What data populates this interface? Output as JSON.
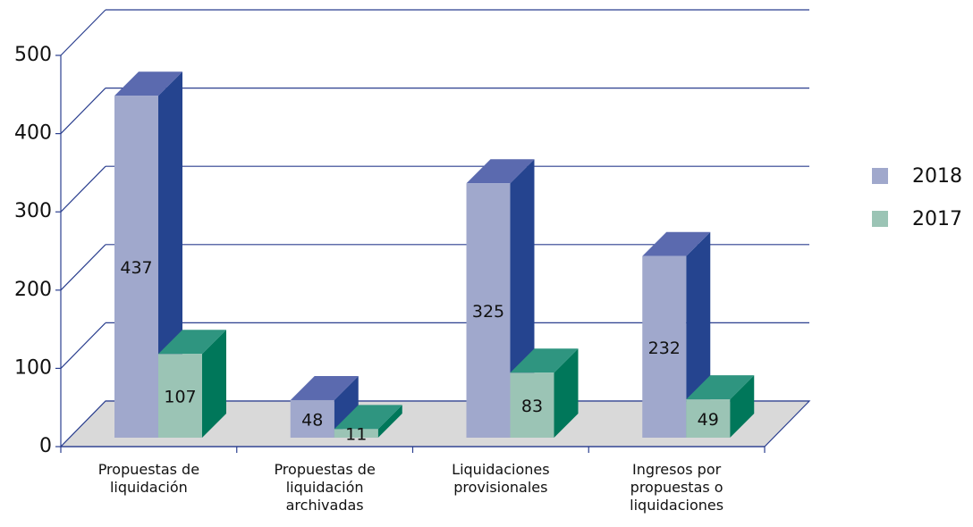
{
  "chart_data": {
    "type": "bar3d",
    "categories": [
      "Propuestas de liquidación",
      "Propuestas de liquidación archivadas",
      "Liquidaciones provisionales",
      "Ingresos por propuestas o liquidaciones"
    ],
    "series": [
      {
        "name": "2018",
        "color": "#a0a8cc",
        "side_color": "#25448f",
        "top_color": "#5b6aaf",
        "values": [
          437,
          48,
          325,
          232
        ]
      },
      {
        "name": "2017",
        "color": "#9bc4b5",
        "side_color": "#00775a",
        "top_color": "#2f9580",
        "values": [
          107,
          11,
          83,
          49
        ]
      }
    ],
    "ylim": [
      0,
      500
    ],
    "yticks": [
      0,
      100,
      200,
      300,
      400,
      500
    ],
    "grid": true,
    "legend": "right"
  }
}
